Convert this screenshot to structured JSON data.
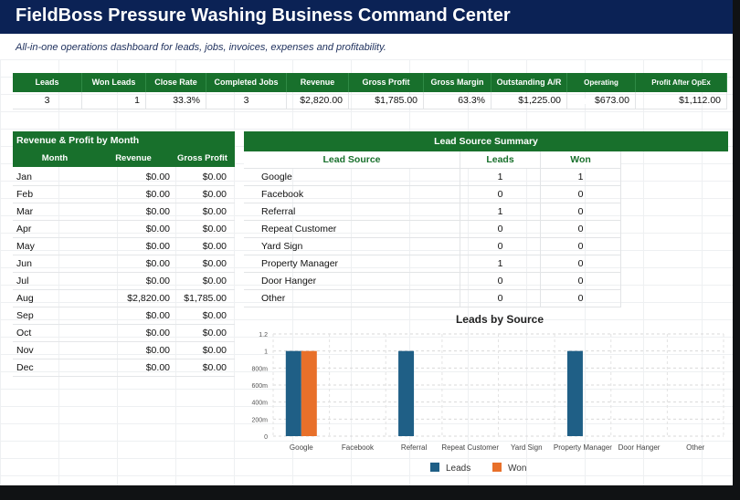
{
  "header": {
    "title": "FieldBoss Pressure Washing Business Command Center",
    "subtitle": "All-in-one operations dashboard for leads, jobs, invoices, expenses and profitability."
  },
  "kpi": {
    "headers": [
      "Leads",
      "Won Leads",
      "Close Rate",
      "Completed Jobs",
      "Revenue",
      "Gross Profit",
      "Gross Margin",
      "Outstanding A/R",
      "Operating Expenses",
      "Profit After OpEx"
    ],
    "values": [
      "3",
      "1",
      "33.3%",
      "3",
      "$2,820.00",
      "$1,785.00",
      "63.3%",
      "$1,225.00",
      "$673.00",
      "$1,112.00"
    ]
  },
  "monthly": {
    "title": "Revenue & Profit by Month",
    "headers": [
      "Month",
      "Revenue",
      "Gross Profit"
    ],
    "rows": [
      [
        "Jan",
        "$0.00",
        "$0.00"
      ],
      [
        "Feb",
        "$0.00",
        "$0.00"
      ],
      [
        "Mar",
        "$0.00",
        "$0.00"
      ],
      [
        "Apr",
        "$0.00",
        "$0.00"
      ],
      [
        "May",
        "$0.00",
        "$0.00"
      ],
      [
        "Jun",
        "$0.00",
        "$0.00"
      ],
      [
        "Jul",
        "$0.00",
        "$0.00"
      ],
      [
        "Aug",
        "$2,820.00",
        "$1,785.00"
      ],
      [
        "Sep",
        "$0.00",
        "$0.00"
      ],
      [
        "Oct",
        "$0.00",
        "$0.00"
      ],
      [
        "Nov",
        "$0.00",
        "$0.00"
      ],
      [
        "Dec",
        "$0.00",
        "$0.00"
      ]
    ]
  },
  "lead_sources": {
    "title": "Lead Source Summary",
    "headers": [
      "Lead Source",
      "Leads",
      "Won"
    ],
    "rows": [
      [
        "Google",
        "1",
        "1"
      ],
      [
        "Facebook",
        "0",
        "0"
      ],
      [
        "Referral",
        "1",
        "0"
      ],
      [
        "Repeat Customer",
        "0",
        "0"
      ],
      [
        "Yard Sign",
        "0",
        "0"
      ],
      [
        "Property Manager",
        "1",
        "0"
      ],
      [
        "Door Hanger",
        "0",
        "0"
      ],
      [
        "Other",
        "0",
        "0"
      ]
    ]
  },
  "colors": {
    "title_bar": "#0b2255",
    "table_header": "#18702c",
    "leads_series": "#1f5f86",
    "won_series": "#e8702a"
  },
  "chart_data": {
    "type": "bar",
    "title": "Leads by Source",
    "categories": [
      "Google",
      "Facebook",
      "Referral",
      "Repeat Customer",
      "Yard Sign",
      "Property Manager",
      "Door Hanger",
      "Other"
    ],
    "series": [
      {
        "name": "Leads",
        "values": [
          1,
          0,
          1,
          0,
          0,
          1,
          0,
          0
        ],
        "color": "#1f5f86"
      },
      {
        "name": "Won",
        "values": [
          1,
          0,
          0,
          0,
          0,
          0,
          0,
          0
        ],
        "color": "#e8702a"
      }
    ],
    "ylim": [
      0,
      1.2
    ],
    "yticks": [
      "0",
      "200m",
      "400m",
      "600m",
      "800m",
      "1",
      "1.2"
    ],
    "ytick_values": [
      0,
      0.2,
      0.4,
      0.6,
      0.8,
      1,
      1.2
    ],
    "legend": "bottom",
    "grid": true
  }
}
